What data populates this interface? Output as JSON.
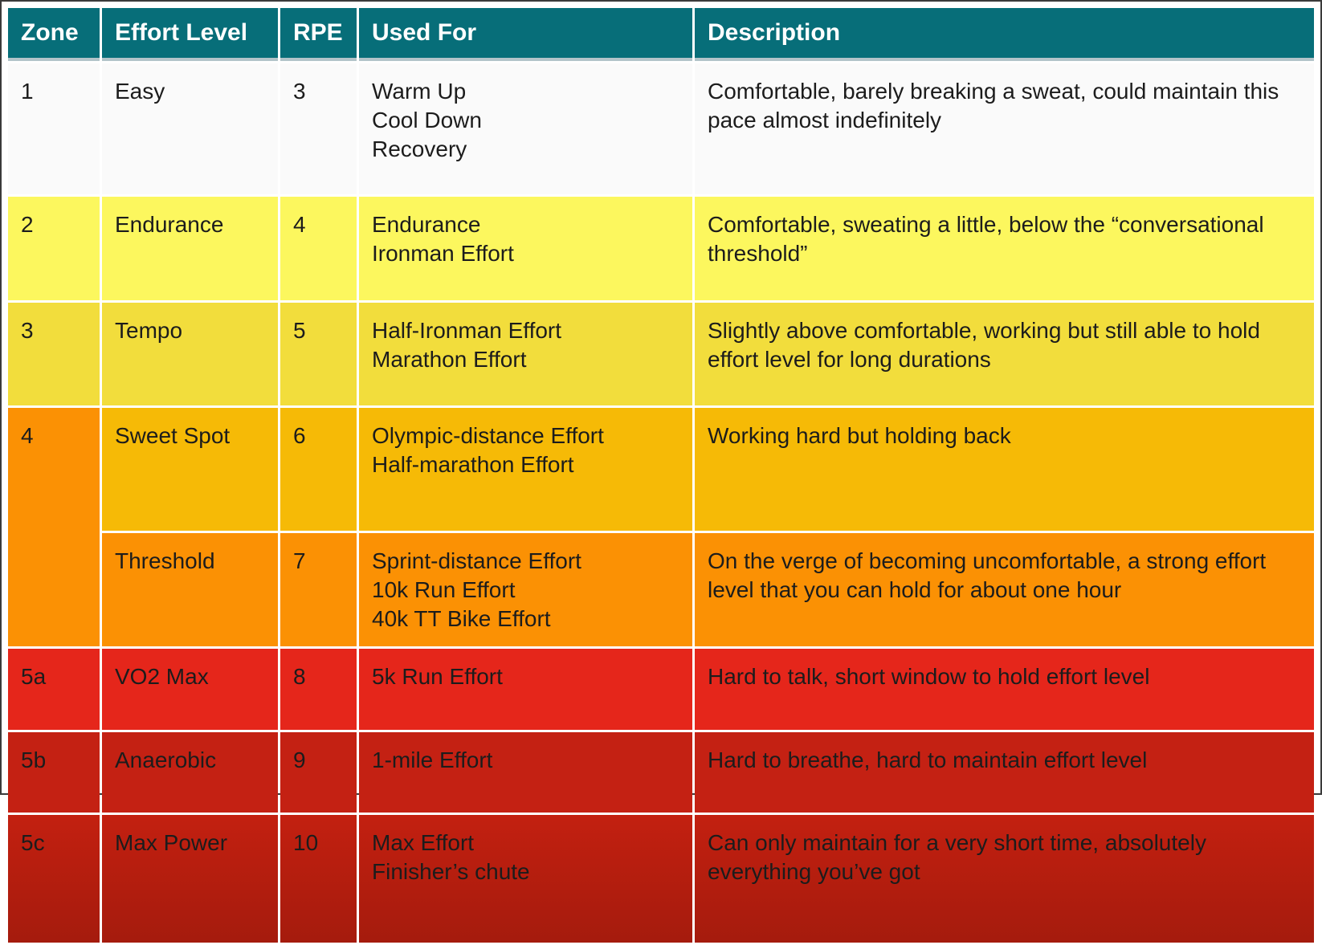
{
  "chart_data": {
    "type": "table",
    "columns": [
      "Zone",
      "Effort Level",
      "RPE",
      "Used For",
      "Description"
    ],
    "rows": [
      {
        "zone": "1",
        "effort": "Easy",
        "rpe": "3",
        "used_for": "Warm Up\nCool Down\nRecovery",
        "description": "Comfortable, barely breaking a sweat, could maintain this pace almost indefinitely",
        "bg": "#fafafa"
      },
      {
        "zone": "2",
        "effort": "Endurance",
        "rpe": "4",
        "used_for": "Endurance\nIronman Effort",
        "description": "Comfortable, sweating a little, below the “conversational threshold”",
        "bg": "#fcf75e"
      },
      {
        "zone": "3",
        "effort": "Tempo",
        "rpe": "5",
        "used_for": "Half-Ironman Effort\nMarathon Effort",
        "description": "Slightly above comfortable, working but still able to hold effort level for long durations",
        "bg": "#f2dd3c"
      },
      {
        "zone": "4",
        "zone_rowspan": 2,
        "zone_bg": "#fb9104",
        "effort": "Sweet Spot",
        "rpe": "6",
        "used_for": "Olympic-distance Effort\nHalf-marathon Effort",
        "description": "Working hard but holding back",
        "bg": "#f6ba06"
      },
      {
        "zone": null,
        "effort": "Threshold",
        "rpe": "7",
        "used_for": "Sprint-distance Effort\n10k Run Effort\n40k TT Bike Effort",
        "description": "On the verge of becoming uncomfortable, a strong effort level that you can hold for about one hour",
        "bg": "#fb9104"
      },
      {
        "zone": "5a",
        "effort": "VO2 Max",
        "rpe": "8",
        "used_for": "5k Run Effort",
        "description": "Hard to talk, short window to hold effort level",
        "bg": "#e5261b"
      },
      {
        "zone": "5b",
        "effort": "Anaerobic",
        "rpe": "9",
        "used_for": "1-mile Effort",
        "description": "Hard to breathe, hard to maintain effort level",
        "bg": "#c42113"
      },
      {
        "zone": "5c",
        "effort": "Max Power",
        "rpe": "10",
        "used_for": "Max Effort\nFinisher’s chute",
        "description": "Can only maintain for a very short time, absolutely everything you’ve got",
        "bg": "linear-gradient(180deg,#c32010,#a51b0d)"
      }
    ],
    "layout": {
      "header_bg": "#076e79",
      "header_text_color": "#ffffff",
      "header_underline_color": "#b3c4c9",
      "grid_gap_color": "#ffffff",
      "body_text_color": "#1c1c1c"
    }
  }
}
